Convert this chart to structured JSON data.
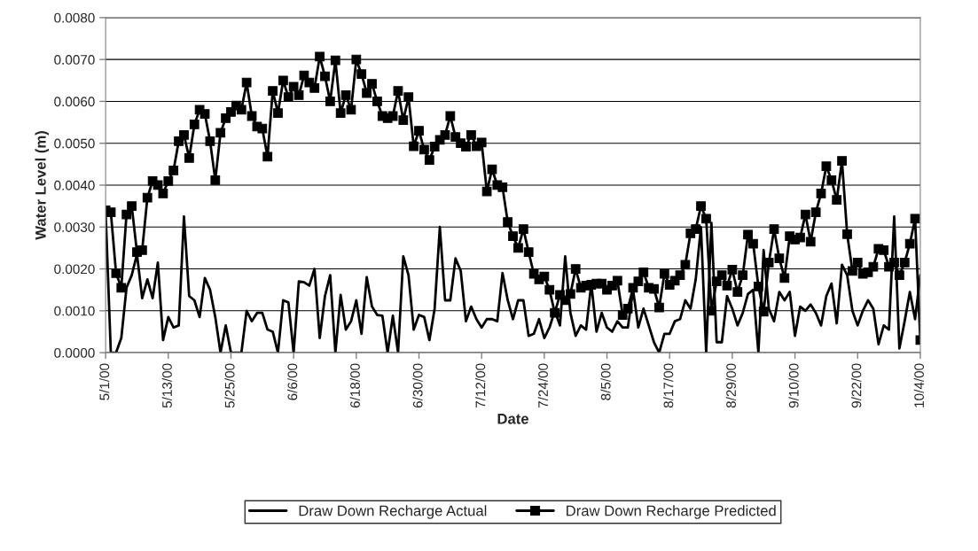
{
  "chart_data": {
    "type": "line",
    "xlabel": "Date",
    "ylabel": "Water Level (m)",
    "x": [
      "2000-05-01",
      "2000-05-02",
      "2000-05-03",
      "2000-05-04",
      "2000-05-05",
      "2000-05-06",
      "2000-05-07",
      "2000-05-08",
      "2000-05-09",
      "2000-05-10",
      "2000-05-11",
      "2000-05-12",
      "2000-05-13",
      "2000-05-14",
      "2000-05-15",
      "2000-05-16",
      "2000-05-17",
      "2000-05-18",
      "2000-05-19",
      "2000-05-20",
      "2000-05-21",
      "2000-05-22",
      "2000-05-23",
      "2000-05-24",
      "2000-05-25",
      "2000-05-26",
      "2000-05-27",
      "2000-05-28",
      "2000-05-29",
      "2000-05-30",
      "2000-05-31",
      "2000-06-01",
      "2000-06-02",
      "2000-06-03",
      "2000-06-04",
      "2000-06-05",
      "2000-06-06",
      "2000-06-07",
      "2000-06-08",
      "2000-06-09",
      "2000-06-10",
      "2000-06-11",
      "2000-06-12",
      "2000-06-13",
      "2000-06-14",
      "2000-06-15",
      "2000-06-16",
      "2000-06-17",
      "2000-06-18",
      "2000-06-19",
      "2000-06-20",
      "2000-06-21",
      "2000-06-22",
      "2000-06-23",
      "2000-06-24",
      "2000-06-25",
      "2000-06-26",
      "2000-06-27",
      "2000-06-28",
      "2000-06-29",
      "2000-06-30",
      "2000-07-01",
      "2000-07-02",
      "2000-07-03",
      "2000-07-04",
      "2000-07-05",
      "2000-07-06",
      "2000-07-07",
      "2000-07-08",
      "2000-07-09",
      "2000-07-10",
      "2000-07-11",
      "2000-07-12",
      "2000-07-13",
      "2000-07-14",
      "2000-07-15",
      "2000-07-16",
      "2000-07-17",
      "2000-07-18",
      "2000-07-19",
      "2000-07-20",
      "2000-07-21",
      "2000-07-22",
      "2000-07-23",
      "2000-07-24",
      "2000-07-25",
      "2000-07-26",
      "2000-07-27",
      "2000-07-28",
      "2000-07-29",
      "2000-07-30",
      "2000-07-31",
      "2000-08-01",
      "2000-08-02",
      "2000-08-03",
      "2000-08-04",
      "2000-08-05",
      "2000-08-06",
      "2000-08-07",
      "2000-08-08",
      "2000-08-09",
      "2000-08-10",
      "2000-08-11",
      "2000-08-12",
      "2000-08-13",
      "2000-08-14",
      "2000-08-15",
      "2000-08-16",
      "2000-08-17",
      "2000-08-18",
      "2000-08-19",
      "2000-08-20",
      "2000-08-21",
      "2000-08-22",
      "2000-08-23",
      "2000-08-24",
      "2000-08-25",
      "2000-08-26",
      "2000-08-27",
      "2000-08-28",
      "2000-08-29",
      "2000-08-30",
      "2000-08-31",
      "2000-09-01",
      "2000-09-02",
      "2000-09-03",
      "2000-09-04",
      "2000-09-05",
      "2000-09-06",
      "2000-09-07",
      "2000-09-08",
      "2000-09-09",
      "2000-09-10",
      "2000-09-11",
      "2000-09-12",
      "2000-09-13",
      "2000-09-14",
      "2000-09-15",
      "2000-09-16",
      "2000-09-17",
      "2000-09-18",
      "2000-09-19",
      "2000-09-20",
      "2000-09-21",
      "2000-09-22",
      "2000-09-23",
      "2000-09-24",
      "2000-09-25",
      "2000-09-26",
      "2000-09-27",
      "2000-09-28",
      "2000-09-29",
      "2000-09-30",
      "2000-10-01",
      "2000-10-02",
      "2000-10-03",
      "2000-10-04"
    ],
    "series": [
      {
        "name": "Draw Down Recharge Actual",
        "color": "#000000",
        "marker": "none",
        "values": [
          0.00335,
          0,
          0,
          0.00035,
          0.00155,
          0.00185,
          0.00235,
          0.0013,
          0.00175,
          0.0013,
          0.00215,
          0.0003,
          0.00085,
          0.0006,
          0.00065,
          0.00325,
          0.00135,
          0.00125,
          0.00085,
          0.00178,
          0.0015,
          0.00085,
          0,
          0.00065,
          0,
          0,
          0,
          0.001,
          0.00075,
          0.00095,
          0.00095,
          0.00055,
          0.0005,
          0,
          0.00125,
          0.0012,
          0,
          0.0017,
          0.00168,
          0.0016,
          0.002,
          0.00035,
          0.00135,
          0.00185,
          0,
          0.00138,
          0.00055,
          0.00075,
          0.00125,
          0.00045,
          0.0018,
          0.0011,
          0.0009,
          0.00088,
          0,
          0.00088,
          0,
          0.0023,
          0.00185,
          0.00055,
          0.0009,
          0.00085,
          0.0003,
          0.00105,
          0.003,
          0.00125,
          0.00125,
          0.00225,
          0.00195,
          0.00075,
          0.0011,
          0.0008,
          0.0006,
          0.0008,
          0.0008,
          0.00075,
          0.0019,
          0.00125,
          0.0008,
          0.00125,
          0.00125,
          0.0004,
          0.00045,
          0.0008,
          0.00035,
          0.0006,
          0.001,
          0.00065,
          0.0023,
          0.00095,
          0.0004,
          0.00065,
          0.00055,
          0.00165,
          0.0005,
          0.00095,
          0.0006,
          0.0005,
          0.00075,
          0.0006,
          0.0006,
          0.0015,
          0.0006,
          0.00105,
          0.00065,
          0.00025,
          0,
          0.00045,
          0.00045,
          0.00075,
          0.0008,
          0.00125,
          0.00105,
          0.00175,
          0.003,
          0,
          0.0031,
          0.00025,
          0.00025,
          0.00135,
          0.00105,
          0.00065,
          0.00095,
          0.0014,
          0.0015,
          0,
          0.00245,
          0.00105,
          0.00075,
          0.00145,
          0.00125,
          0.00145,
          0.0004,
          0.0011,
          0.001,
          0.00115,
          0.00095,
          0.00065,
          0.00135,
          0.00165,
          0.0007,
          0.0021,
          0.00185,
          0.001,
          0.00065,
          0.001,
          0.00125,
          0.00105,
          0.0002,
          0.00065,
          0.00055,
          0.00325,
          0.0001,
          0.00075,
          0.00145,
          0.0008,
          0.00185
        ]
      },
      {
        "name": "Draw Down Recharge Predicted",
        "color": "#000000",
        "marker": "square",
        "values": [
          0.0034,
          0.00335,
          0.0019,
          0.00155,
          0.0033,
          0.0035,
          0.0024,
          0.00245,
          0.0037,
          0.0041,
          0.004,
          0.0038,
          0.0041,
          0.00435,
          0.00505,
          0.0052,
          0.00465,
          0.00545,
          0.0058,
          0.0057,
          0.00505,
          0.00412,
          0.00525,
          0.0056,
          0.00575,
          0.0059,
          0.0058,
          0.00645,
          0.00565,
          0.0054,
          0.00535,
          0.00468,
          0.00625,
          0.00572,
          0.0065,
          0.0061,
          0.00635,
          0.00615,
          0.00662,
          0.00645,
          0.00632,
          0.00707,
          0.0066,
          0.006,
          0.00698,
          0.00572,
          0.00615,
          0.0058,
          0.007,
          0.00665,
          0.0062,
          0.00642,
          0.006,
          0.00565,
          0.0056,
          0.00565,
          0.00625,
          0.00555,
          0.0061,
          0.00493,
          0.0053,
          0.00485,
          0.0046,
          0.00492,
          0.00508,
          0.0052,
          0.00565,
          0.00515,
          0.005,
          0.00492,
          0.0052,
          0.00493,
          0.00502,
          0.00385,
          0.00438,
          0.004,
          0.00395,
          0.00312,
          0.00278,
          0.0025,
          0.00295,
          0.0024,
          0.00188,
          0.00175,
          0.00182,
          0.0015,
          0.00095,
          0.00138,
          0.00125,
          0.0014,
          0.002,
          0.00155,
          0.0016,
          0.00162,
          0.00165,
          0.00165,
          0.0015,
          0.0016,
          0.00172,
          0.0009,
          0.00105,
          0.00155,
          0.0017,
          0.00192,
          0.00155,
          0.00152,
          0.00108,
          0.00188,
          0.00162,
          0.00172,
          0.00185,
          0.0021,
          0.00285,
          0.00295,
          0.0035,
          0.0032,
          0.001,
          0.0017,
          0.00185,
          0.0016,
          0.00198,
          0.00145,
          0.00185,
          0.00282,
          0.0026,
          0.00158,
          0.00098,
          0.00215,
          0.00295,
          0.00225,
          0.00178,
          0.00278,
          0.0027,
          0.00275,
          0.0033,
          0.00265,
          0.00335,
          0.0038,
          0.00445,
          0.00412,
          0.00365,
          0.00458,
          0.00283,
          0.00195,
          0.00215,
          0.00188,
          0.00192,
          0.00205,
          0.00248,
          0.00245,
          0.00205,
          0.00215,
          0.00185,
          0.00215,
          0.0026,
          0.0032,
          0.0003
        ]
      }
    ],
    "xlim": [
      "2000-05-01",
      "2000-10-04"
    ],
    "xticks": [
      {
        "value": "2000-05-01",
        "label": "5/1/00"
      },
      {
        "value": "2000-05-13",
        "label": "5/13/00"
      },
      {
        "value": "2000-05-25",
        "label": "5/25/00"
      },
      {
        "value": "2000-06-06",
        "label": "6/6/00"
      },
      {
        "value": "2000-06-18",
        "label": "6/18/00"
      },
      {
        "value": "2000-06-30",
        "label": "6/30/00"
      },
      {
        "value": "2000-07-12",
        "label": "7/12/00"
      },
      {
        "value": "2000-07-24",
        "label": "7/24/00"
      },
      {
        "value": "2000-08-05",
        "label": "8/5/00"
      },
      {
        "value": "2000-08-17",
        "label": "8/17/00"
      },
      {
        "value": "2000-08-29",
        "label": "8/29/00"
      },
      {
        "value": "2000-09-10",
        "label": "9/10/00"
      },
      {
        "value": "2000-09-22",
        "label": "9/22/00"
      },
      {
        "value": "2000-10-04",
        "label": "10/4/00"
      }
    ],
    "ylim": [
      0,
      0.008
    ],
    "yticks": [
      {
        "value": 0,
        "label": "0.0000"
      },
      {
        "value": 0.001,
        "label": "0.0010"
      },
      {
        "value": 0.002,
        "label": "0.0020"
      },
      {
        "value": 0.003,
        "label": "0.0030"
      },
      {
        "value": 0.004,
        "label": "0.0040"
      },
      {
        "value": 0.005,
        "label": "0.0050"
      },
      {
        "value": 0.006,
        "label": "0.0060"
      },
      {
        "value": 0.007,
        "label": "0.0070"
      },
      {
        "value": 0.008,
        "label": "0.0080"
      }
    ],
    "grid": "y",
    "legend": "bottom",
    "line_style": "solid"
  }
}
